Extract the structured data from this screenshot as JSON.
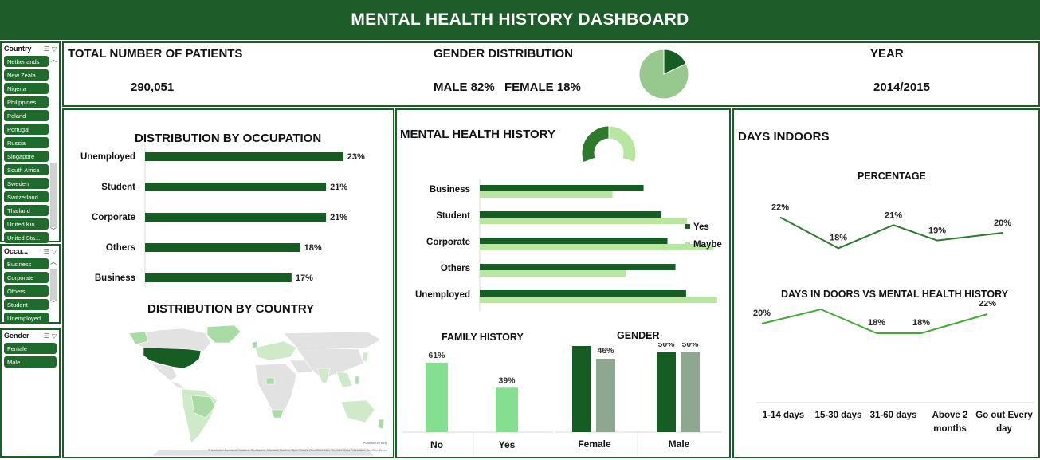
{
  "header": {
    "title": "MENTAL HEALTH HISTORY DASHBOARD"
  },
  "slicers": {
    "country": {
      "title": "Country",
      "items": [
        "Netherlands",
        "New Zeala...",
        "Nigeria",
        "Philippines",
        "Poland",
        "Portugal",
        "Russia",
        "Singapore",
        "South Africa",
        "Sweden",
        "Switzerland",
        "Thailand",
        "United Kin...",
        "United Sta..."
      ]
    },
    "occupation": {
      "title": "Occu...",
      "items": [
        "Business",
        "Corporate",
        "Others",
        "Student",
        "Unemployed"
      ]
    },
    "gender": {
      "title": "Gender",
      "items": [
        "Female",
        "Male"
      ]
    }
  },
  "kpis": {
    "total_label": "TOTAL NUMBER OF PATIENTS",
    "total_value": "290,051",
    "gender_label": "GENDER DISTRIBUTION",
    "male_text": "MALE 82%",
    "female_text": "FEMALE 18%",
    "year_label": "YEAR",
    "year_value": "2014/2015"
  },
  "titles": {
    "occupation": "DISTRIBUTION BY OCCUPATION",
    "country": "DISTRIBUTION BY COUNTRY",
    "mental_history": "MENTAL HEALTH HISTORY",
    "family_history": "FAMILY HISTORY",
    "gender": "GENDER",
    "days_indoors": "DAYS INDOORS",
    "percentage": "PERCENTAGE",
    "days_vs_history": "DAYS IN DOORS VS MENTAL HEALTH HISTORY"
  },
  "map_credits": {
    "powered": "Powered by Bing",
    "sources": "© Australian Bureau of Statistics, GeoNames, Microsoft, Navinfo, Open Places, OpenStreetMap, Overture Maps Foundation, TomTom, Zenrin"
  },
  "colors": {
    "dark_green": "#1e5c2a",
    "bar_green": "#155d22",
    "light_green": "#b6e6a0",
    "mid_green": "#84e08f",
    "grey_green": "#8da88e",
    "line_green": "#2d7a2d",
    "line_light": "#47a83a"
  },
  "chart_data": [
    {
      "id": "gender_pie",
      "type": "pie",
      "categories": [
        "Male",
        "Female"
      ],
      "values": [
        82,
        18
      ]
    },
    {
      "id": "occupation",
      "type": "bar",
      "categories": [
        "Unemployed",
        "Student",
        "Corporate",
        "Others",
        "Business"
      ],
      "values": [
        23,
        21,
        21,
        18,
        17
      ],
      "labels": [
        "23%",
        "21%",
        "21%",
        "18%",
        "17%"
      ],
      "xlim": [
        0,
        27
      ]
    },
    {
      "id": "mental_donut",
      "type": "pie",
      "categories": [
        "Yes",
        "Maybe"
      ],
      "values": [
        50,
        50
      ]
    },
    {
      "id": "mental_history",
      "type": "bar",
      "categories": [
        "Business",
        "Student",
        "Corporate",
        "Others",
        "Unemployed"
      ],
      "series": [
        {
          "name": "Yes",
          "values": [
            18.5,
            20.5,
            21.2,
            22.1,
            23.3
          ]
        },
        {
          "name": "Maybe",
          "values": [
            15.0,
            23.4,
            26.4,
            16.5,
            26.8
          ]
        }
      ],
      "xlim": [
        0,
        27
      ]
    },
    {
      "id": "family_history",
      "type": "bar",
      "categories": [
        "No",
        "Yes"
      ],
      "values": [
        61,
        39
      ],
      "labels": [
        "61%",
        "39%"
      ],
      "ylim": [
        0,
        70
      ]
    },
    {
      "id": "gender_history",
      "type": "bar",
      "categories": [
        "Female",
        "Male"
      ],
      "series": [
        {
          "values": [
            54,
            50
          ],
          "labels": [
            "54%",
            "50%"
          ]
        },
        {
          "values": [
            46,
            50
          ],
          "labels": [
            "46%",
            "50%"
          ]
        }
      ],
      "ylim": [
        0,
        60
      ]
    },
    {
      "id": "days_indoors_pct",
      "type": "line",
      "categories": [
        "1-14 days",
        "15-30 days",
        "31-60 days",
        "Above 2 months",
        "Go out Every day"
      ],
      "values": [
        22,
        18,
        21,
        19,
        20
      ],
      "labels": [
        "22%",
        "18%",
        "21%",
        "19%",
        "20%"
      ],
      "ylim": [
        17,
        23
      ]
    },
    {
      "id": "days_vs_history",
      "type": "line",
      "categories": [
        "1-14 days",
        "15-30 days",
        "31-60 days",
        "Above 2 months",
        "Go out Every day"
      ],
      "values": [
        20,
        23,
        18,
        18,
        22
      ],
      "labels": [
        "20%",
        "23%",
        "18%",
        "18%",
        "22%"
      ],
      "ylim": [
        0,
        40
      ],
      "x_tick_labels": [
        [
          "1-14 days"
        ],
        [
          "15-30 days"
        ],
        [
          "31-60 days"
        ],
        [
          "Above 2",
          "months"
        ],
        [
          "Go out Every",
          "day"
        ]
      ]
    }
  ]
}
